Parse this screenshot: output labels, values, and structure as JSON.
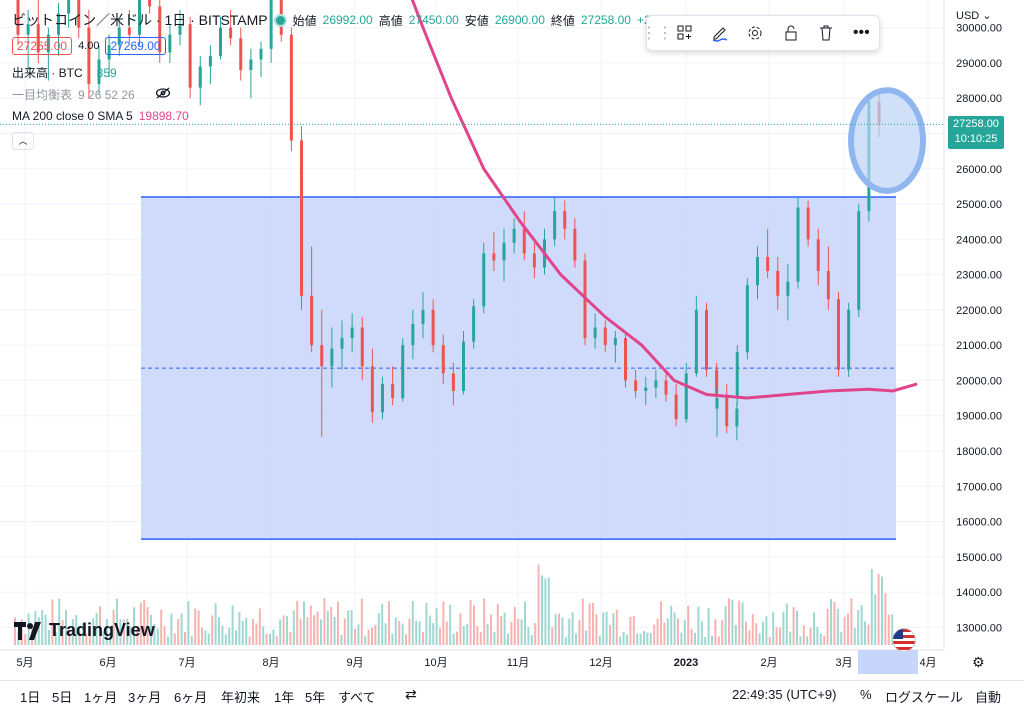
{
  "header": {
    "symbol": "ビットコイン／米ドル · 1日 · BITSTAMP",
    "open_label": "始値",
    "open": "26992.00",
    "high_label": "高値",
    "high": "27450.00",
    "low_label": "安値",
    "low": "26900.00",
    "close_label": "終値",
    "close": "27258.00",
    "change": "+27",
    "sell_price": "27265.00",
    "spread": "4.00",
    "buy_price": "27269.00",
    "volume_label": "出来高 · BTC",
    "volume_value": "859",
    "ichimoku_label": "一目均衡表",
    "ichimoku_params": "9 26 52 26",
    "ma_label": "MA 200 close 0 SMA 5",
    "ma_value": "19898.70",
    "currency": "USD",
    "brand": "TradingView"
  },
  "toolbar": {
    "icons": [
      "grip-icon",
      "add-template-icon",
      "brush-icon",
      "settings-icon",
      "lock-icon",
      "trash-icon",
      "more-icon"
    ]
  },
  "last_price": {
    "price": "27258.00",
    "countdown": "10:10:25"
  },
  "bottom": {
    "timeframes": [
      "1日",
      "5日",
      "1ヶ月",
      "3ヶ月",
      "6ヶ月",
      "年初来",
      "1年",
      "5年",
      "すべて"
    ],
    "clock": "22:49:35 (UTC+9)",
    "percent": "%",
    "log": "ログスケール",
    "auto": "自動"
  },
  "colors": {
    "up": "#26a69a",
    "down": "#ef5350",
    "ma": "#e0458b",
    "rect_fill": "#c8d5fa",
    "rect_line": "#2962ff",
    "accent": "#2962ff"
  },
  "chart_data": {
    "type": "candlestick",
    "y_ticks": [
      13000,
      14000,
      15000,
      16000,
      17000,
      18000,
      19000,
      20000,
      21000,
      22000,
      23000,
      24000,
      25000,
      26000,
      27000,
      28000,
      29000,
      30000
    ],
    "ylim": [
      12500,
      30500
    ],
    "x_ticks": [
      "5月",
      "6月",
      "7月",
      "8月",
      "9月",
      "10月",
      "11月",
      "12月",
      "2023",
      "2月",
      "3月",
      "4月"
    ],
    "rectangle": {
      "top": 25200,
      "bottom": 15500,
      "mid": 20350
    },
    "ma_points": [
      [
        9,
        33000
      ],
      [
        10,
        30000
      ],
      [
        10.7,
        28000
      ],
      [
        11.5,
        26000
      ],
      [
        12.4,
        24500
      ],
      [
        13.4,
        23000
      ],
      [
        14.5,
        21800
      ],
      [
        15.4,
        21000
      ],
      [
        16.2,
        20000
      ],
      [
        17,
        19600
      ],
      [
        18,
        19500
      ],
      [
        19,
        19600
      ],
      [
        20,
        19700
      ],
      [
        21,
        19750
      ],
      [
        21.6,
        19700
      ],
      [
        22.2,
        19900
      ]
    ],
    "circle_annotation": {
      "price_top": 28000,
      "price_bottom": 25600
    },
    "ohlc": [
      [
        0,
        31000,
        31500,
        29500,
        29800
      ],
      [
        0.25,
        29800,
        30500,
        28800,
        30100
      ],
      [
        0.5,
        30100,
        31200,
        29000,
        29300
      ],
      [
        0.75,
        29300,
        30000,
        28500,
        29800
      ],
      [
        1,
        29800,
        30700,
        29200,
        30400
      ],
      [
        1.25,
        30400,
        31500,
        30000,
        31200
      ],
      [
        1.5,
        31200,
        31800,
        29700,
        30000
      ],
      [
        1.75,
        30000,
        30500,
        28000,
        28400
      ],
      [
        2,
        28400,
        29500,
        28100,
        29100
      ],
      [
        2.25,
        29100,
        29800,
        28600,
        29500
      ],
      [
        2.5,
        29500,
        30300,
        29200,
        30000
      ],
      [
        2.75,
        30000,
        30500,
        29600,
        29800
      ],
      [
        3,
        29800,
        31900,
        29500,
        31700
      ],
      [
        3.25,
        31700,
        32000,
        30400,
        30600
      ],
      [
        3.5,
        30600,
        31000,
        29000,
        29300
      ],
      [
        3.75,
        29300,
        30100,
        29000,
        29800
      ],
      [
        4,
        29800,
        30500,
        29500,
        30100
      ],
      [
        4.25,
        30100,
        30300,
        28000,
        28300
      ],
      [
        4.5,
        28300,
        29200,
        27800,
        28900
      ],
      [
        4.75,
        28900,
        29500,
        28400,
        29200
      ],
      [
        5,
        29200,
        30300,
        29100,
        30000
      ],
      [
        5.25,
        30000,
        30500,
        29500,
        29700
      ],
      [
        5.5,
        29700,
        30000,
        28500,
        28800
      ],
      [
        5.75,
        28800,
        29400,
        28000,
        29100
      ],
      [
        6,
        29100,
        29600,
        28600,
        29400
      ],
      [
        6.25,
        29400,
        31300,
        29000,
        31000
      ],
      [
        6.5,
        31000,
        31400,
        29600,
        29800
      ],
      [
        6.75,
        29800,
        30000,
        26500,
        26800
      ],
      [
        7,
        26800,
        27200,
        22000,
        22400
      ],
      [
        7.25,
        22400,
        23800,
        20800,
        21000
      ],
      [
        7.5,
        21000,
        22000,
        18400,
        20400
      ],
      [
        7.75,
        20400,
        21500,
        19800,
        20900
      ],
      [
        8,
        20900,
        21700,
        20300,
        21200
      ],
      [
        8.25,
        21200,
        21900,
        20800,
        21500
      ],
      [
        8.5,
        21500,
        21800,
        20000,
        20400
      ],
      [
        8.75,
        20400,
        20900,
        18800,
        19100
      ],
      [
        9,
        19100,
        20100,
        18900,
        19900
      ],
      [
        9.25,
        19900,
        20400,
        19300,
        19500
      ],
      [
        9.5,
        19500,
        21200,
        19400,
        21000
      ],
      [
        9.75,
        21000,
        22000,
        20600,
        21600
      ],
      [
        10,
        21600,
        22500,
        21200,
        22000
      ],
      [
        10.25,
        22000,
        22300,
        20800,
        21000
      ],
      [
        10.5,
        21000,
        21300,
        19900,
        20200
      ],
      [
        10.75,
        20200,
        20500,
        19300,
        19700
      ],
      [
        11,
        19700,
        21400,
        19600,
        21100
      ],
      [
        11.25,
        21100,
        22300,
        20900,
        22100
      ],
      [
        11.5,
        22100,
        23900,
        21900,
        23600
      ],
      [
        11.75,
        23600,
        24200,
        23100,
        23400
      ],
      [
        12,
        23400,
        24300,
        22800,
        23900
      ],
      [
        12.25,
        23900,
        24600,
        23600,
        24300
      ],
      [
        12.5,
        24300,
        24800,
        23400,
        23600
      ],
      [
        12.75,
        23600,
        23900,
        22900,
        23200
      ],
      [
        13,
        23200,
        24300,
        23000,
        24000
      ],
      [
        13.25,
        24000,
        25200,
        23800,
        24800
      ],
      [
        13.5,
        24800,
        25100,
        24000,
        24300
      ],
      [
        13.75,
        24300,
        24600,
        23200,
        23400
      ],
      [
        14,
        23400,
        23600,
        21000,
        21200
      ],
      [
        14.25,
        21200,
        21900,
        20900,
        21500
      ],
      [
        14.5,
        21500,
        21700,
        20800,
        21000
      ],
      [
        14.75,
        21000,
        21400,
        20500,
        21200
      ],
      [
        15,
        21200,
        21300,
        19800,
        20000
      ],
      [
        15.25,
        20000,
        20300,
        19500,
        19700
      ],
      [
        15.5,
        19700,
        20100,
        19300,
        19800
      ],
      [
        15.75,
        19800,
        20300,
        19500,
        20000
      ],
      [
        16,
        20000,
        20200,
        19400,
        19600
      ],
      [
        16.25,
        19600,
        19900,
        18700,
        18900
      ],
      [
        16.5,
        18900,
        20500,
        18800,
        20200
      ],
      [
        16.75,
        20200,
        22400,
        20100,
        22000
      ],
      [
        17,
        22000,
        22200,
        20100,
        20300
      ],
      [
        17.25,
        20300,
        20500,
        19400,
        19600
      ],
      [
        17.5,
        19600,
        19900,
        18500,
        18700
      ],
      [
        17.75,
        18700,
        19400,
        18300,
        19200
      ]
    ]
  }
}
